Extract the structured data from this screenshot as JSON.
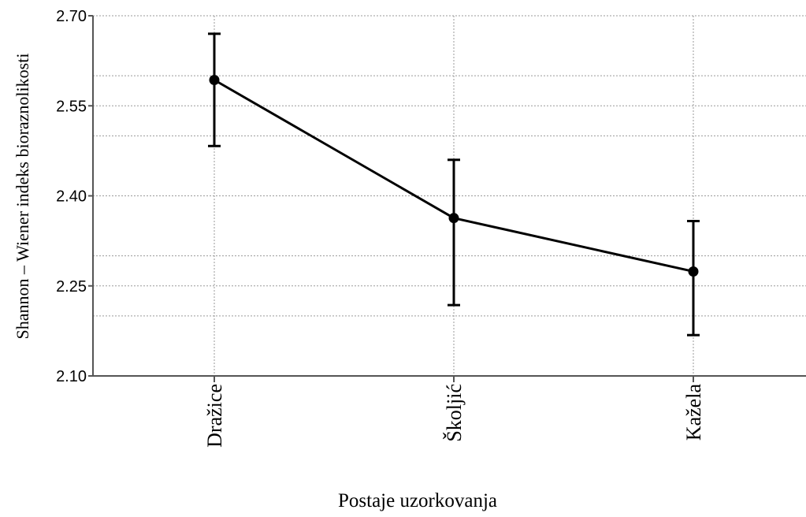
{
  "chart_data": {
    "type": "line",
    "title": "",
    "xlabel": "Postaje uzorkovanja",
    "ylabel": "Shannon – Wiener indeks bioraznolikosti",
    "categories": [
      "Dražice",
      "Školjić",
      "Kažela"
    ],
    "series": [
      {
        "values": [
          2.593,
          2.363,
          2.274
        ],
        "error_lower": [
          2.483,
          2.218,
          2.168
        ],
        "error_upper": [
          2.67,
          2.46,
          2.358
        ]
      }
    ],
    "ylim": [
      2.1,
      2.7
    ],
    "yticks": [
      "2.10",
      "2.25",
      "2.40",
      "2.55",
      "2.70"
    ],
    "y_gridlines": [
      2.2,
      2.3,
      2.5,
      2.6
    ],
    "grid": true,
    "legend": "none"
  }
}
